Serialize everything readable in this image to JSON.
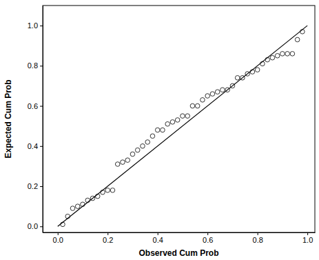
{
  "chart_data": {
    "type": "scatter",
    "x_label": "Observed Cum Prob",
    "y_label": "Expected Cum Prob",
    "xlim": [
      -0.06,
      1.03
    ],
    "ylim": [
      -0.03,
      1.1
    ],
    "xticks": [
      {
        "value": 0,
        "label": "0.0"
      },
      {
        "value": 0.2,
        "label": "0.2"
      },
      {
        "value": 0.4,
        "label": "0.4"
      },
      {
        "value": 0.6,
        "label": "0.6"
      },
      {
        "value": 0.8,
        "label": "0.8"
      },
      {
        "value": 1,
        "label": "1.0"
      }
    ],
    "yticks": [
      {
        "value": 0,
        "label": "0.0"
      },
      {
        "value": 0.2,
        "label": "0.2"
      },
      {
        "value": 0.4,
        "label": "0.4"
      },
      {
        "value": 0.6,
        "label": "0.6"
      },
      {
        "value": 0.8,
        "label": "0.8"
      },
      {
        "value": 1,
        "label": "1.0"
      }
    ],
    "grid": false,
    "series": [
      {
        "type": "scatter",
        "marker": "open-circle",
        "color": "#333333",
        "x": [
          0.02,
          0.04,
          0.06,
          0.08,
          0.1,
          0.12,
          0.14,
          0.16,
          0.18,
          0.2,
          0.22,
          0.24,
          0.26,
          0.28,
          0.3,
          0.32,
          0.34,
          0.36,
          0.38,
          0.4,
          0.42,
          0.44,
          0.46,
          0.48,
          0.5,
          0.52,
          0.54,
          0.56,
          0.58,
          0.6,
          0.62,
          0.64,
          0.66,
          0.68,
          0.7,
          0.72,
          0.74,
          0.76,
          0.78,
          0.8,
          0.82,
          0.84,
          0.86,
          0.88,
          0.9,
          0.92,
          0.94,
          0.96,
          0.98
        ],
        "values": [
          0.01,
          0.05,
          0.09,
          0.1,
          0.11,
          0.13,
          0.14,
          0.15,
          0.17,
          0.18,
          0.18,
          0.31,
          0.32,
          0.33,
          0.36,
          0.38,
          0.4,
          0.42,
          0.45,
          0.48,
          0.48,
          0.51,
          0.52,
          0.53,
          0.55,
          0.55,
          0.6,
          0.6,
          0.63,
          0.65,
          0.66,
          0.67,
          0.68,
          0.68,
          0.7,
          0.74,
          0.74,
          0.76,
          0.77,
          0.78,
          0.81,
          0.83,
          0.84,
          0.85,
          0.86,
          0.86,
          0.86,
          0.93,
          0.97
        ]
      },
      {
        "type": "line",
        "line_style": "solid",
        "color": "#000000",
        "x": [
          0,
          1
        ],
        "values": [
          0,
          1
        ]
      }
    ]
  }
}
